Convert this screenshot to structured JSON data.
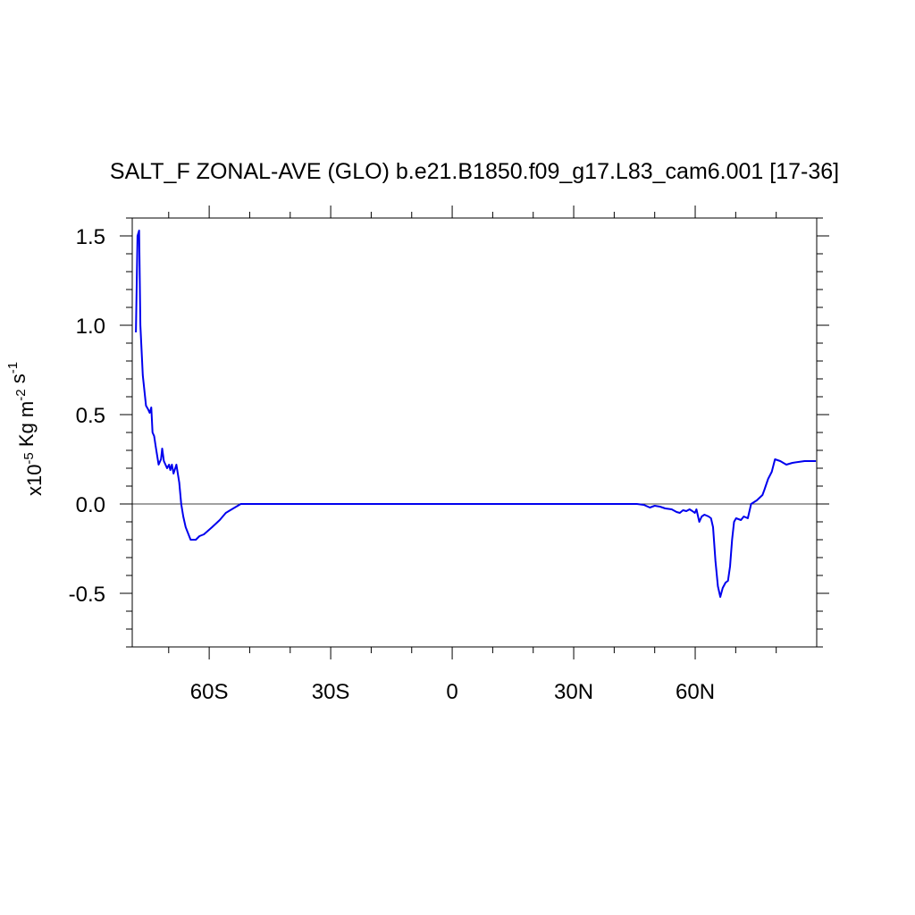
{
  "chart_data": {
    "type": "line",
    "title": "SALT_F ZONAL-AVE (GLO) b.e21.B1850.f09_g17.L83_cam6.001 [17-36]",
    "ylabel": {
      "prefix": "x10",
      "exp1": "-5",
      "mid": " Kg m",
      "exp2": "-2",
      "mid2": " s",
      "exp3": "-1"
    },
    "xlabel": "",
    "xlim": [
      -79,
      90
    ],
    "ylim": [
      -0.8,
      1.6
    ],
    "x_ticks": [
      {
        "value": -60,
        "label": "60S"
      },
      {
        "value": -30,
        "label": "30S"
      },
      {
        "value": 0,
        "label": "0"
      },
      {
        "value": 30,
        "label": "30N"
      },
      {
        "value": 60,
        "label": "60N"
      }
    ],
    "y_ticks": [
      {
        "value": 1.5,
        "label": "1.5"
      },
      {
        "value": 1.0,
        "label": "1.0"
      },
      {
        "value": 0.5,
        "label": "0.5"
      },
      {
        "value": 0.0,
        "label": "0.0"
      },
      {
        "value": -0.5,
        "label": "-0.5"
      }
    ],
    "reference_line": 0,
    "series": [
      {
        "color": "#0000ee",
        "x": [
          -78.1,
          -77.7,
          -77.3,
          -77.0,
          -76.4,
          -75.6,
          -75.1,
          -74.7,
          -74.3,
          -74.0,
          -73.6,
          -73.2,
          -72.5,
          -71.9,
          -71.6,
          -71.2,
          -70.8,
          -70.4,
          -69.9,
          -69.6,
          -69.2,
          -68.8,
          -68.1,
          -67.4,
          -66.9,
          -66.4,
          -65.8,
          -64.6,
          -63.3,
          -62.4,
          -61.3,
          -59.3,
          -57.4,
          -55.9,
          -53.7,
          -52.2,
          -50.0,
          -40.0,
          -30.0,
          -20.0,
          -10.0,
          0.0,
          10.0,
          20.0,
          30.0,
          40.0,
          45.6,
          47.3,
          48.8,
          50.0,
          51.3,
          52.6,
          54.2,
          55.4,
          56.2,
          57.0,
          57.8,
          58.6,
          59.3,
          59.9,
          60.3,
          61.0,
          61.6,
          62.3,
          63.3,
          63.9,
          64.4,
          65.0,
          65.6,
          66.2,
          66.8,
          67.5,
          68.1,
          68.6,
          69.1,
          69.6,
          70.1,
          71.3,
          72.0,
          73.0,
          73.8,
          75.2,
          76.6,
          77.1,
          78.0,
          78.9,
          79.7,
          81.0,
          82.5,
          84.0,
          87.0,
          89.8
        ],
        "y": [
          0.96,
          1.5,
          1.53,
          1.0,
          0.72,
          0.55,
          0.53,
          0.51,
          0.54,
          0.4,
          0.38,
          0.32,
          0.22,
          0.25,
          0.31,
          0.24,
          0.22,
          0.2,
          0.22,
          0.19,
          0.22,
          0.17,
          0.22,
          0.12,
          0.0,
          -0.07,
          -0.13,
          -0.2,
          -0.2,
          -0.18,
          -0.17,
          -0.13,
          -0.09,
          -0.05,
          -0.02,
          0.0,
          0.0,
          0.0,
          0.0,
          0.0,
          0.0,
          0.0,
          0.0,
          0.0,
          0.0,
          0.0,
          0.0,
          -0.005,
          -0.02,
          -0.01,
          -0.015,
          -0.025,
          -0.03,
          -0.045,
          -0.05,
          -0.035,
          -0.04,
          -0.03,
          -0.04,
          -0.05,
          -0.03,
          -0.1,
          -0.07,
          -0.06,
          -0.07,
          -0.08,
          -0.13,
          -0.32,
          -0.46,
          -0.52,
          -0.47,
          -0.44,
          -0.43,
          -0.35,
          -0.2,
          -0.1,
          -0.08,
          -0.09,
          -0.07,
          -0.08,
          0.0,
          0.02,
          0.05,
          0.08,
          0.14,
          0.18,
          0.25,
          0.24,
          0.22,
          0.23,
          0.24,
          0.24
        ]
      }
    ]
  }
}
